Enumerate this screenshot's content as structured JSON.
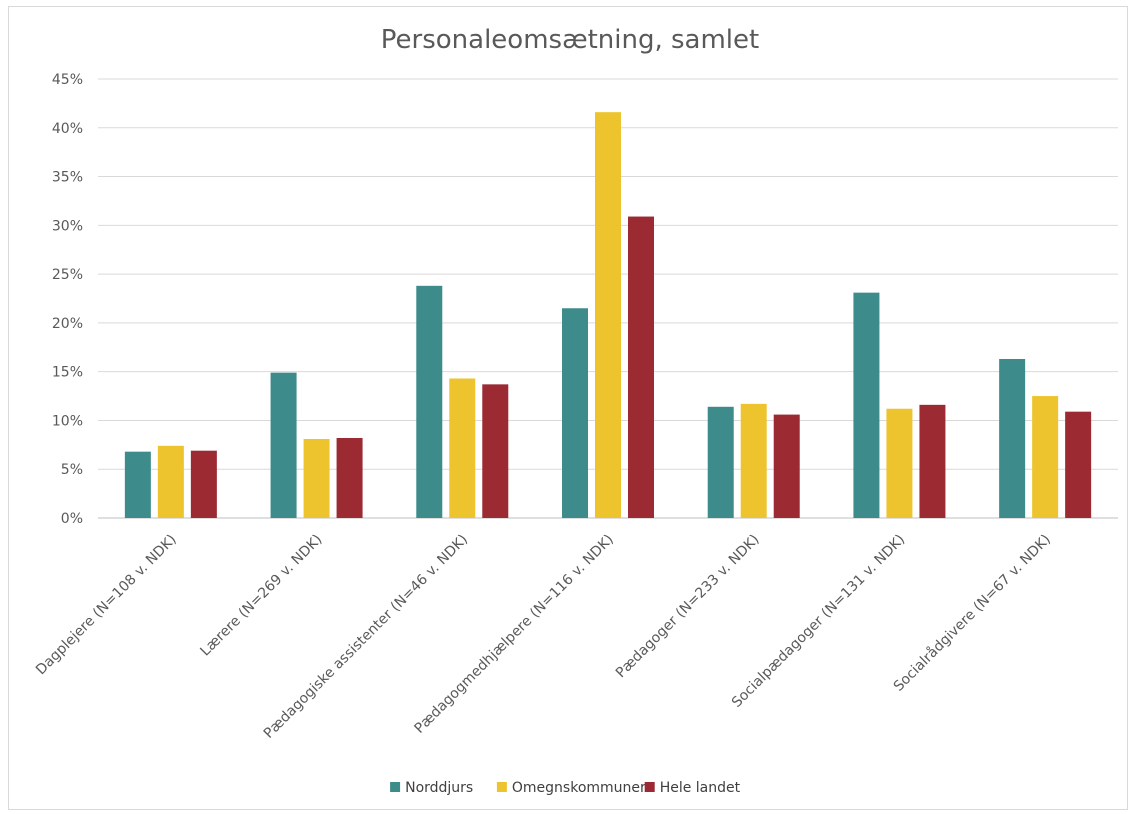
{
  "chart_data": {
    "type": "bar",
    "title": "Personaleomsætning, samlet",
    "xlabel": "",
    "ylabel": "",
    "ylim": [
      0,
      45
    ],
    "yticks": [
      "0%",
      "5%",
      "10%",
      "15%",
      "20%",
      "25%",
      "30%",
      "35%",
      "40%",
      "45%"
    ],
    "categories": [
      "Dagplejere (N=108 v. NDK)",
      "Lærere (N=269 v. NDK)",
      "Pædagogiske assistenter (N=46 v. NDK)",
      "Pædagogmedhjælpere (N=116 v. NDK)",
      "Pædagoger (N=233 v. NDK)",
      "Socialpædagoger (N=131 v. NDK)",
      "Socialrådgivere (N=67 v. NDK)"
    ],
    "series": [
      {
        "name": "Norddjurs",
        "color": "#3d8b8b",
        "values": [
          6.8,
          14.9,
          23.8,
          21.5,
          11.4,
          23.1,
          16.3
        ]
      },
      {
        "name": "Omegnskommuner",
        "color": "#eec42e",
        "values": [
          7.4,
          8.1,
          14.3,
          41.6,
          11.7,
          11.2,
          12.5
        ]
      },
      {
        "name": "Hele landet",
        "color": "#9b2a32",
        "values": [
          6.9,
          8.2,
          13.7,
          30.9,
          10.6,
          11.6,
          10.9
        ]
      }
    ],
    "grid": true,
    "legend": "bottom"
  }
}
